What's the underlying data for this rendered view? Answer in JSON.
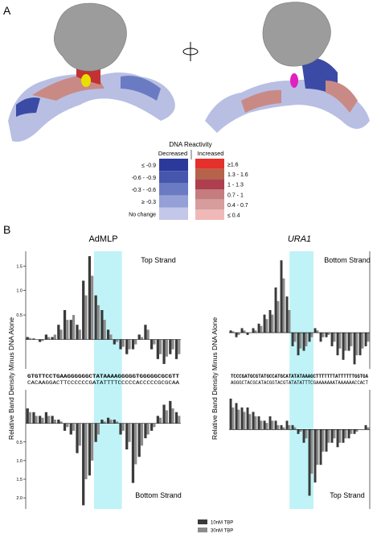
{
  "panel_labels": [
    "A",
    "B"
  ],
  "legend_a": {
    "title": "DNA Reactivity",
    "decreased": {
      "label": "Decreased",
      "items": [
        {
          "label": "≤ -0.9",
          "color": "#2b3a9a"
        },
        {
          "label": "-0.6 - -0.9",
          "color": "#4656ad"
        },
        {
          "label": "-0.3 - -0.6",
          "color": "#6b7bc3"
        },
        {
          "label": "≥ -0.3",
          "color": "#95a0d6"
        },
        {
          "label": "No change",
          "color": "#c3c7e9"
        }
      ]
    },
    "increased": {
      "label": "Increased",
      "items": [
        {
          "label": "≥1.6",
          "color": "#e5302b"
        },
        {
          "label": "1.3 - 1.6",
          "color": "#b5634a"
        },
        {
          "label": "1 - 1.3",
          "color": "#ad3f4e"
        },
        {
          "label": "0.7 - 1",
          "color": "#c47c7e"
        },
        {
          "label": "0.4 - 0.7",
          "color": "#d69d9c"
        },
        {
          "label": "≤ 0.4",
          "color": "#f1b8b8"
        }
      ]
    }
  },
  "legend": [
    {
      "name": "10nM TBP",
      "color": "#3a3a3a"
    },
    {
      "name": "30nM TBP",
      "color": "#8c8c8c"
    }
  ],
  "chart_data": [
    {
      "type": "bar",
      "title": "AdMLP",
      "ylabel": "Relative Band Density Minus DNA Alone",
      "strand_label": "Top Strand",
      "sequence": [
        "GTGTTCCTGAAGGGGGGCTATAAAAGGGGGTGGGGGCGCGTT",
        "CACAAGGACTTCCCCCCGATATTTTCCCCCACCCCCGCGCAA"
      ],
      "ylim": [
        -0.6,
        1.8
      ],
      "yticks": [
        0.5,
        {
          "value": 1,
          "label": "1.0"
        },
        1.5
      ],
      "series": [
        {
          "color": "#3a3a3a",
          "values": [
            0.05,
            0.02,
            -0.05,
            0.1,
            0.05,
            0.3,
            0.6,
            0.4,
            0.3,
            1.2,
            1.7,
            0.9,
            0.6,
            0.2,
            -0.1,
            -0.2,
            -0.3,
            -0.2,
            0.1,
            0.3,
            -0.2,
            -0.4,
            -0.5,
            -0.3,
            -0.4
          ]
        },
        {
          "color": "#8c8c8c",
          "values": [
            0.03,
            0.0,
            -0.03,
            0.05,
            0.1,
            0.2,
            0.4,
            0.5,
            0.2,
            0.9,
            1.3,
            0.7,
            0.4,
            0.1,
            -0.05,
            -0.15,
            -0.2,
            -0.1,
            0.05,
            0.2,
            -0.1,
            -0.3,
            -0.35,
            -0.2,
            -0.3
          ]
        }
      ]
    },
    {
      "type": "bar",
      "strand_label": "Bottom Strand",
      "inverted": true,
      "ylim": [
        -0.9,
        2.3
      ],
      "yticks": [
        0.5,
        {
          "value": 1,
          "label": "1.0"
        },
        1.5,
        {
          "value": 2,
          "label": "2.0"
        }
      ],
      "series": [
        {
          "color": "#3a3a3a",
          "values": [
            -0.4,
            -0.3,
            -0.2,
            -0.3,
            -0.2,
            -0.1,
            0.2,
            0.3,
            0.8,
            2.2,
            1.4,
            0.5,
            -0.1,
            -0.15,
            -0.1,
            0.3,
            0.7,
            1.6,
            0.9,
            0.4,
            0.2,
            -0.2,
            -0.5,
            -0.6,
            -0.3
          ]
        },
        {
          "color": "#8c8c8c",
          "values": [
            -0.3,
            -0.2,
            -0.15,
            -0.2,
            -0.1,
            -0.05,
            0.1,
            0.2,
            0.6,
            1.5,
            1.0,
            0.3,
            -0.05,
            -0.1,
            -0.05,
            0.2,
            0.5,
            1.1,
            0.6,
            0.3,
            0.1,
            -0.15,
            -0.35,
            -0.4,
            -0.2
          ]
        }
      ]
    },
    {
      "type": "bar",
      "title": "URA1",
      "title_italic": true,
      "ylabel": "Relative Band Density Minus DNA Alone",
      "strand_label": "Bottom Strand",
      "sequence": [
        "TCCCGATGCGTATGCCATGCATATATAAAGCTTTTTTTATTTTTTGGTGA",
        "AGGGCTACGCATACGGTACGTATATATTTCGAAAAAAATAAAAAACCACT"
      ],
      "ylim": [
        -0.8,
        1.8
      ],
      "series": [
        {
          "color": "#3a3a3a",
          "values": [
            0.05,
            -0.1,
            0.1,
            -0.05,
            0.1,
            0.2,
            0.4,
            0.5,
            1.0,
            1.6,
            0.8,
            -0.3,
            -0.5,
            -0.4,
            -0.2,
            0.1,
            -0.2,
            -0.1,
            -0.3,
            -0.5,
            -0.6,
            -0.4,
            -0.7,
            -0.5,
            -0.3
          ]
        },
        {
          "color": "#8c8c8c",
          "values": [
            0.03,
            -0.05,
            0.05,
            0.0,
            0.05,
            0.15,
            0.3,
            0.4,
            0.7,
            1.2,
            0.5,
            -0.2,
            -0.35,
            -0.3,
            -0.1,
            0.05,
            -0.1,
            -0.05,
            -0.2,
            -0.35,
            -0.4,
            -0.3,
            -0.5,
            -0.35,
            -0.2
          ]
        }
      ]
    },
    {
      "type": "bar",
      "strand_label": "Top Strand",
      "inverted": true,
      "ylim": [
        -0.9,
        1.8
      ],
      "series": [
        {
          "color": "#3a3a3a",
          "values": [
            -0.7,
            -0.6,
            -0.5,
            -0.5,
            -0.4,
            -0.3,
            -0.2,
            -0.3,
            -0.2,
            -0.1,
            -0.2,
            -0.1,
            0.1,
            0.3,
            1.5,
            1.2,
            0.8,
            0.5,
            0.3,
            0.4,
            0.3,
            0.2,
            0.1,
            0.0,
            -0.1
          ]
        },
        {
          "color": "#8c8c8c",
          "values": [
            -0.5,
            -0.45,
            -0.4,
            -0.35,
            -0.3,
            -0.2,
            -0.15,
            -0.2,
            -0.1,
            -0.05,
            -0.1,
            -0.05,
            0.05,
            0.2,
            1.0,
            0.8,
            0.5,
            0.3,
            0.2,
            0.3,
            0.2,
            0.1,
            0.05,
            0.0,
            -0.05
          ]
        }
      ]
    }
  ]
}
